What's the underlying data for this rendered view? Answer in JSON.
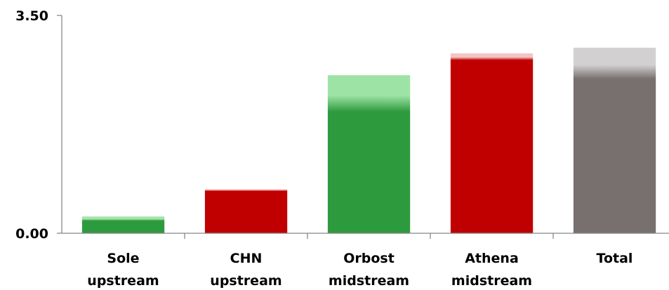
{
  "chart_data": {
    "type": "bar",
    "title": "",
    "xlabel": "",
    "ylabel": "",
    "ylim": [
      0,
      3.5
    ],
    "y_ticks": [
      {
        "value": 0,
        "label": "0.00"
      },
      {
        "value": 3.5,
        "label": "3.50"
      }
    ],
    "grid": false,
    "legend": "none",
    "categories": [
      {
        "lines": [
          "Sole",
          "upstream"
        ]
      },
      {
        "lines": [
          "CHN",
          "upstream"
        ]
      },
      {
        "lines": [
          "Orbost",
          "midstream"
        ]
      },
      {
        "lines": [
          "Athena",
          "midstream"
        ]
      },
      {
        "lines": [
          "Total"
        ]
      }
    ],
    "bars": [
      {
        "value": 0.27,
        "solid_top": 0.2,
        "color": "#2e9a3e",
        "highlight": "#a8e4ad"
      },
      {
        "value": 0.71,
        "solid_top": 0.68,
        "color": "#c00000",
        "highlight": "#f3c4c4"
      },
      {
        "value": 2.54,
        "solid_top": 1.95,
        "color": "#2e9a3e",
        "highlight": "#9ee3a6"
      },
      {
        "value": 2.89,
        "solid_top": 2.78,
        "color": "#c00000",
        "highlight": "#f3c4c4"
      },
      {
        "value": 2.98,
        "solid_top": 2.48,
        "color": "#77706e",
        "highlight": "#d2d0d0"
      }
    ]
  }
}
